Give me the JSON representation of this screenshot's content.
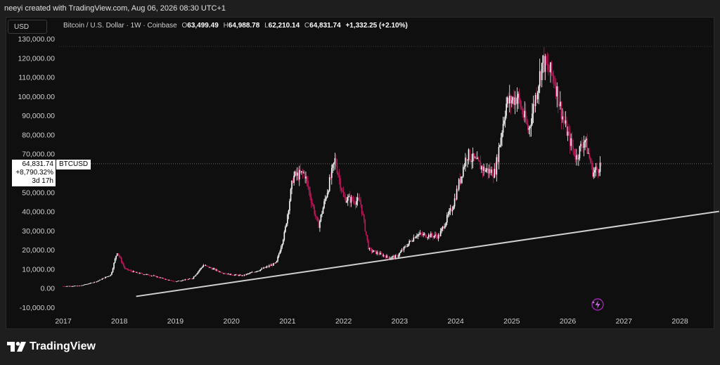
{
  "header": {
    "attribution": "neeyi created with TradingView.com, Aug 06, 2026 08:30 UTC+1"
  },
  "toolbar": {
    "currency_button": "USD"
  },
  "legend": {
    "symbol": "Bitcoin / U.S. Dollar · 1W · Coinbase",
    "o_label": "O",
    "o_value": "63,499.49",
    "h_label": "H",
    "h_value": "64,988.78",
    "l_label": "L",
    "l_value": "62,210.14",
    "c_label": "C",
    "c_value": "64,831.74",
    "change": "+1,332.25 (+2.10%)"
  },
  "price_tag": {
    "price": "64,831.74",
    "pct": "+8,790.32%",
    "countdown": "3d 17h",
    "ticker": "BTCUSD"
  },
  "branding": {
    "name": "TradingView"
  },
  "colors": {
    "background": "#0f0f0f",
    "up": "#ffffff",
    "down": "#c2185b",
    "trendline": "#cfcfcf",
    "accent": "#9c27b0"
  },
  "icons": {
    "bolt": "lightning-bolt-icon"
  },
  "chart_data": {
    "type": "candlestick",
    "title": "Bitcoin / U.S. Dollar · 1W · Coinbase",
    "ylim": [
      -10000,
      130000
    ],
    "y_ticks": [
      "130,000.00",
      "120,000.00",
      "110,000.00",
      "100,000.00",
      "90,000.00",
      "80,000.00",
      "70,000.00",
      "60,000.00",
      "50,000.00",
      "40,000.00",
      "30,000.00",
      "20,000.00",
      "10,000.00",
      "0.00",
      "-10,000.00"
    ],
    "y_tick_values": [
      130000,
      120000,
      110000,
      100000,
      90000,
      80000,
      70000,
      60000,
      50000,
      40000,
      30000,
      20000,
      10000,
      0,
      -10000
    ],
    "x_ticks": [
      "2017",
      "2018",
      "2019",
      "2020",
      "2021",
      "2022",
      "2023",
      "2024",
      "2025",
      "2026",
      "2027",
      "2028"
    ],
    "x_tick_values": [
      2017,
      2018,
      2019,
      2020,
      2021,
      2022,
      2023,
      2024,
      2025,
      2026,
      2027,
      2028
    ],
    "xlim": [
      2017,
      2028.7
    ],
    "price_series": {
      "name": "BTCUSD",
      "x": [
        2017.0,
        2017.3,
        2017.6,
        2017.85,
        2017.96,
        2018.1,
        2018.3,
        2018.6,
        2018.9,
        2019.0,
        2019.3,
        2019.5,
        2019.8,
        2019.95,
        2020.2,
        2020.5,
        2020.8,
        2020.95,
        2021.1,
        2021.3,
        2021.55,
        2021.85,
        2022.0,
        2022.3,
        2022.45,
        2022.8,
        2022.95,
        2023.3,
        2023.7,
        2023.95,
        2024.2,
        2024.5,
        2024.7,
        2024.9,
        2025.1,
        2025.3,
        2025.55,
        2025.75,
        2025.9,
        2026.0,
        2026.15,
        2026.3,
        2026.45,
        2026.6
      ],
      "y": [
        1000,
        1200,
        3500,
        7000,
        19000,
        10000,
        8000,
        6500,
        4000,
        3500,
        5000,
        12000,
        8500,
        7200,
        6500,
        9500,
        13000,
        29000,
        58000,
        60000,
        32000,
        67000,
        47000,
        45000,
        20000,
        16000,
        16500,
        28000,
        27000,
        43000,
        70000,
        62000,
        60000,
        96000,
        100000,
        82000,
        118000,
        110000,
        90000,
        80000,
        68000,
        78000,
        60000,
        64800
      ]
    },
    "trendline": {
      "name": "",
      "x": [
        2018.3,
        2028.7
      ],
      "y": [
        -4300,
        40000
      ]
    },
    "last_price": 64831.74
  }
}
